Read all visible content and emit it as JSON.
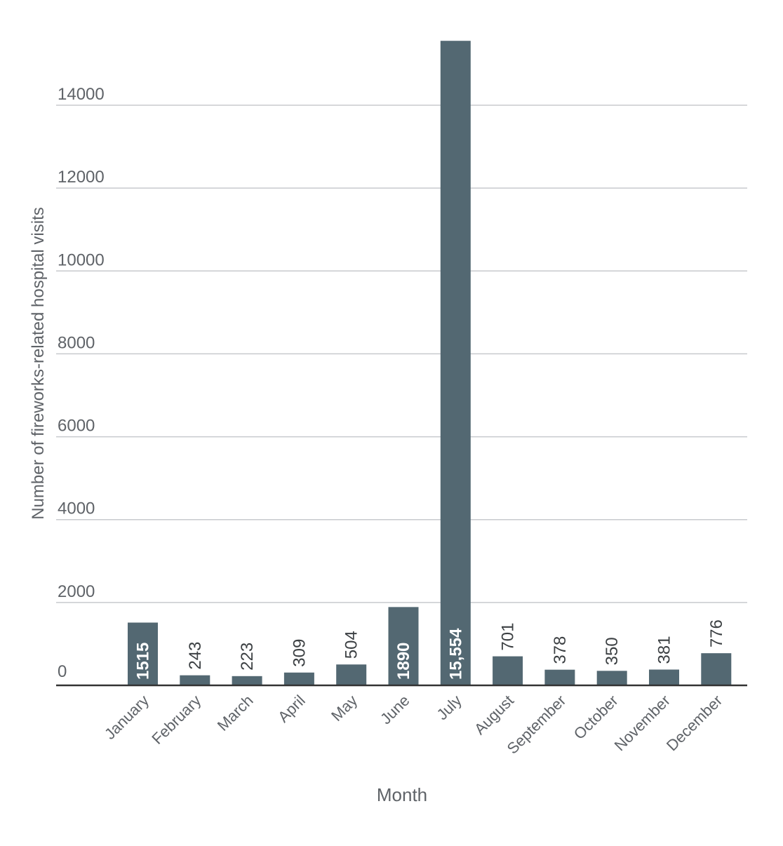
{
  "chart_data": {
    "type": "bar",
    "title": "",
    "xlabel": "Month",
    "ylabel": "Number of fireworks-related hospital visits",
    "categories": [
      "January",
      "February",
      "March",
      "April",
      "May",
      "June",
      "July",
      "August",
      "September",
      "October",
      "November",
      "December"
    ],
    "values": [
      1515,
      243,
      223,
      309,
      504,
      1890,
      15554,
      701,
      378,
      350,
      381,
      776
    ],
    "data_labels": [
      "1515",
      "243",
      "223",
      "309",
      "504",
      "1890",
      "15,554",
      "701",
      "378",
      "350",
      "381",
      "776"
    ],
    "y_ticks": [
      0,
      2000,
      4000,
      6000,
      8000,
      10000,
      12000,
      14000
    ],
    "y_tick_labels": [
      "0",
      "2000",
      "4000",
      "6000",
      "8000",
      "10000",
      "12000",
      "14000"
    ],
    "ylim": [
      0,
      15554
    ],
    "grid": true,
    "legend": "none",
    "colors": {
      "bar": "#536872",
      "grid": "#c8cace",
      "axis": "#333333",
      "text": "#5f6368"
    }
  }
}
